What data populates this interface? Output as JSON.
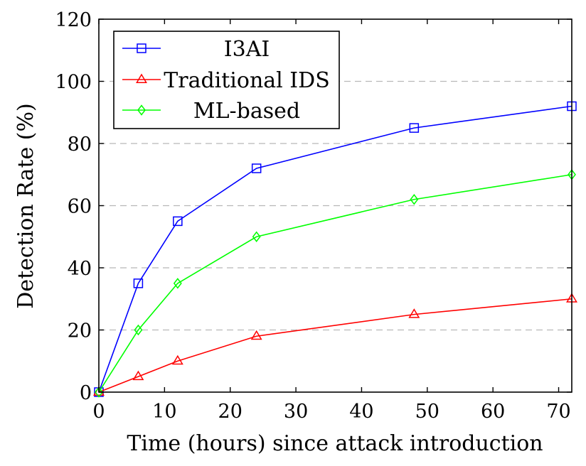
{
  "chart_data": {
    "type": "line",
    "title": "",
    "xlabel": "Time (hours) since attack introduction",
    "ylabel": "Detection Rate (%)",
    "xlim": [
      0,
      72
    ],
    "ylim": [
      0,
      120
    ],
    "xticks": [
      0,
      10,
      20,
      30,
      40,
      50,
      60,
      70
    ],
    "yticks": [
      0,
      20,
      40,
      60,
      80,
      100,
      120
    ],
    "grid": "horizontal-dashed",
    "legend_position": "top-left",
    "x": [
      0,
      6,
      12,
      24,
      48,
      72
    ],
    "series": [
      {
        "name": "I3AI",
        "color": "#0000ff",
        "marker": "square",
        "values": [
          0,
          35,
          55,
          72,
          85,
          92
        ]
      },
      {
        "name": "Traditional IDS",
        "color": "#ff0000",
        "marker": "triangle",
        "values": [
          0,
          5,
          10,
          18,
          25,
          30
        ]
      },
      {
        "name": "ML-based",
        "color": "#00ff00",
        "marker": "diamond",
        "values": [
          0,
          20,
          35,
          50,
          62,
          70
        ]
      }
    ]
  }
}
